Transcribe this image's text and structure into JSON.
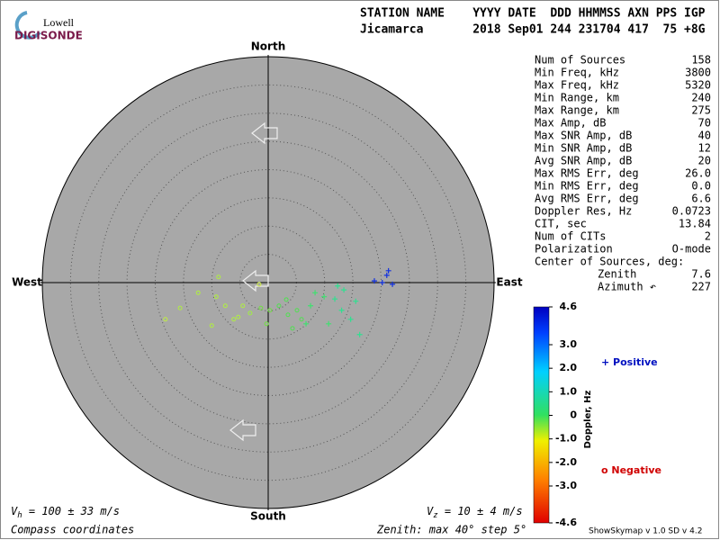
{
  "logo": {
    "top": "Lowell",
    "bottom": "DIGISONDE"
  },
  "header": {
    "line1": "STATION NAME    YYYY DATE  DDD HHMMSS AXN PPS IGP",
    "line2": "Jicamarca       2018 Sep01 244 231704 417  75 +8G"
  },
  "stats": [
    [
      "Num of Sources",
      "158"
    ],
    [
      "Min Freq, kHz",
      "3800"
    ],
    [
      "Max Freq, kHz",
      "5320"
    ],
    [
      "Min Range, km",
      "240"
    ],
    [
      "Max Range, km",
      "275"
    ],
    [
      "Max Amp, dB",
      "70"
    ],
    [
      "Max SNR Amp, dB",
      "40"
    ],
    [
      "Min SNR Amp, dB",
      "12"
    ],
    [
      "Avg SNR Amp, dB",
      "20"
    ],
    [
      "Max RMS Err, deg",
      "26.0"
    ],
    [
      "Min RMS Err, deg",
      "0.0"
    ],
    [
      "Avg RMS Err, deg",
      "6.6"
    ],
    [
      "Doppler Res, Hz",
      "0.0723"
    ],
    [
      "CIT, sec",
      "13.84"
    ],
    [
      "Num of CITs",
      "2"
    ],
    [
      "Polarization",
      "O-mode"
    ]
  ],
  "center": {
    "title": "Center of Sources, deg:",
    "rows": [
      [
        "Zenith",
        "7.6"
      ],
      [
        "Azimuth ↶",
        "227"
      ]
    ]
  },
  "directions": {
    "north": "North",
    "south": "South",
    "west": "West",
    "east": "East"
  },
  "plot": {
    "zenith_max": 40,
    "zenith_step": 5
  },
  "sources": [
    {
      "east": 21.3,
      "north": 2.1,
      "polarity": "positive",
      "color": "#1030e0"
    },
    {
      "east": 21.0,
      "north": 1.3,
      "polarity": "positive",
      "color": "#1030e0"
    },
    {
      "east": 18.8,
      "north": 0.3,
      "polarity": "positive",
      "color": "#1030e0"
    },
    {
      "east": 22.0,
      "north": -0.3,
      "polarity": "positive",
      "color": "#1030e0"
    },
    {
      "east": 20.2,
      "north": 0.0,
      "polarity": "positive",
      "color": "#1030e0"
    },
    {
      "east": 12.3,
      "north": -0.6,
      "polarity": "positive",
      "color": "#30e090"
    },
    {
      "east": 11.8,
      "north": -2.9,
      "polarity": "positive",
      "color": "#30e090"
    },
    {
      "east": 13.0,
      "north": -4.9,
      "polarity": "positive",
      "color": "#30e090"
    },
    {
      "east": 9.9,
      "north": -2.5,
      "polarity": "positive",
      "color": "#40e070"
    },
    {
      "east": 7.5,
      "north": -4.1,
      "polarity": "positive",
      "color": "#40e070"
    },
    {
      "east": 14.6,
      "north": -6.5,
      "polarity": "positive",
      "color": "#30e090"
    },
    {
      "east": 16.2,
      "north": -9.2,
      "polarity": "positive",
      "color": "#30e090"
    },
    {
      "east": 10.7,
      "north": -7.3,
      "polarity": "positive",
      "color": "#40e070"
    },
    {
      "east": 8.3,
      "north": -1.8,
      "polarity": "positive",
      "color": "#40e070"
    },
    {
      "east": 15.5,
      "north": -3.3,
      "polarity": "positive",
      "color": "#30e090"
    },
    {
      "east": 6.7,
      "north": -7.3,
      "polarity": "positive",
      "color": "#40e070"
    },
    {
      "east": 13.4,
      "north": -1.3,
      "polarity": "positive",
      "color": "#30e090"
    },
    {
      "east": 5.1,
      "north": -4.9,
      "polarity": "negative",
      "color": "#50e050"
    },
    {
      "east": 3.5,
      "north": -5.7,
      "polarity": "negative",
      "color": "#50e050"
    },
    {
      "east": 5.9,
      "north": -6.5,
      "polarity": "negative",
      "color": "#50e050"
    },
    {
      "east": 1.9,
      "north": -4.1,
      "polarity": "negative",
      "color": "#50e050"
    },
    {
      "east": 0.3,
      "north": -4.9,
      "polarity": "negative",
      "color": "#70e040"
    },
    {
      "east": -1.3,
      "north": -4.5,
      "polarity": "negative",
      "color": "#70e040"
    },
    {
      "east": -0.3,
      "north": -7.3,
      "polarity": "negative",
      "color": "#70e040"
    },
    {
      "east": 3.2,
      "north": -3.0,
      "polarity": "negative",
      "color": "#50e050"
    },
    {
      "east": 4.3,
      "north": -8.1,
      "polarity": "negative",
      "color": "#50e050"
    },
    {
      "east": -4.5,
      "north": -4.1,
      "polarity": "negative",
      "color": "#b0f040"
    },
    {
      "east": -6.1,
      "north": -6.5,
      "polarity": "negative",
      "color": "#b0f040"
    },
    {
      "east": -7.6,
      "north": -4.1,
      "polarity": "negative",
      "color": "#b0f040"
    },
    {
      "east": -9.2,
      "north": -2.5,
      "polarity": "negative",
      "color": "#b0f040"
    },
    {
      "east": -12.4,
      "north": -1.8,
      "polarity": "negative",
      "color": "#b0f040"
    },
    {
      "east": -15.6,
      "north": -4.5,
      "polarity": "negative",
      "color": "#b0f040"
    },
    {
      "east": -18.2,
      "north": -6.5,
      "polarity": "negative",
      "color": "#c0f040"
    },
    {
      "east": -8.8,
      "north": 1.0,
      "polarity": "negative",
      "color": "#b0f040"
    },
    {
      "east": -3.2,
      "north": -5.4,
      "polarity": "negative",
      "color": "#a0f040"
    },
    {
      "east": -10.0,
      "north": -7.6,
      "polarity": "negative",
      "color": "#b0f040"
    },
    {
      "east": -1.6,
      "north": -0.3,
      "polarity": "negative",
      "color": "#d0f040"
    },
    {
      "east": -5.3,
      "north": -6.1,
      "polarity": "negative",
      "color": "#b0f040"
    }
  ],
  "colorbar": {
    "title": "Doppler, Hz",
    "ticks": [
      {
        "value": 4.6,
        "label": "4.6"
      },
      {
        "value": 3.0,
        "label": "3.0"
      },
      {
        "value": 2.0,
        "label": "2.0"
      },
      {
        "value": 1.0,
        "label": "1.0"
      },
      {
        "value": 0,
        "label": "0"
      },
      {
        "value": -1.0,
        "label": "-1.0"
      },
      {
        "value": -2.0,
        "label": "-2.0"
      },
      {
        "value": -3.0,
        "label": "-3.0"
      },
      {
        "value": -4.6,
        "label": "-4.6"
      }
    ]
  },
  "legend": {
    "positive": "+ Positive",
    "negative": "o Negative"
  },
  "footer": {
    "vh": {
      "symbol": "V",
      "sub": "h",
      "text": " = 100 ± 33 m/s"
    },
    "vz": {
      "symbol": "V",
      "sub": "z",
      "text": " = 10 ± 4 m/s"
    },
    "coords": "Compass coordinates",
    "zenith": "Zenith: max 40°  step 5°",
    "version": "ShowSkymap v 1.0  SD v 4.2"
  }
}
